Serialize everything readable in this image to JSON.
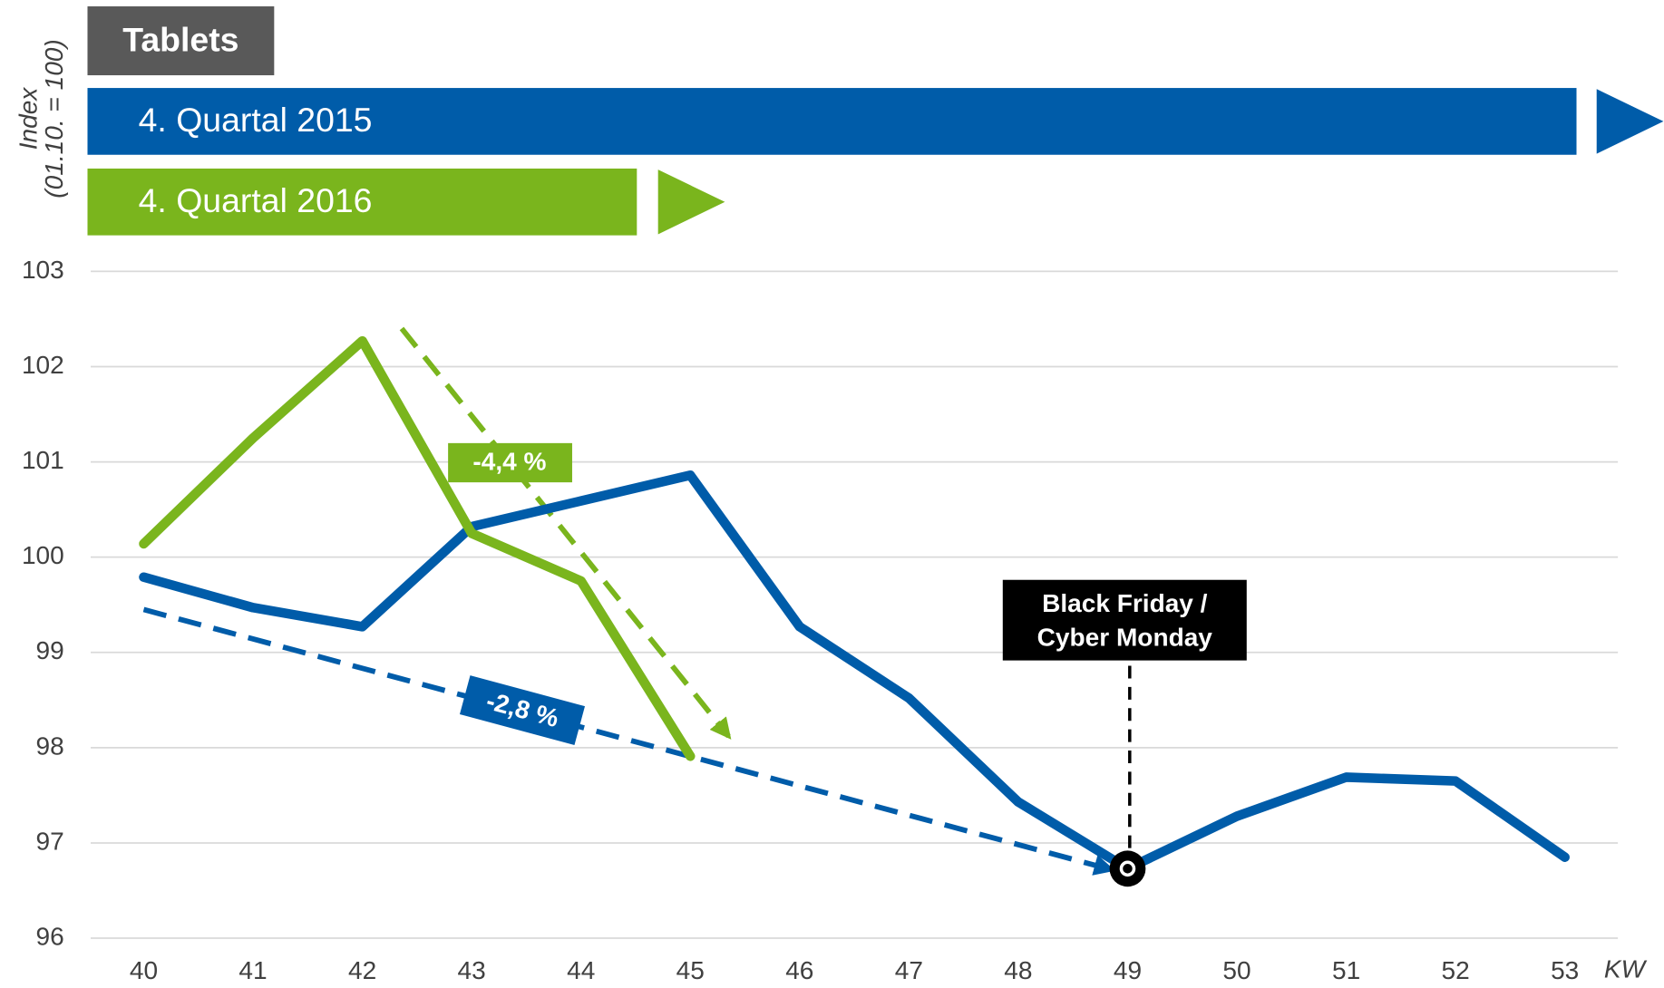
{
  "chart_data": {
    "type": "line",
    "title": "Tablets",
    "y_label_lines": [
      "Index",
      "(01.10. = 100)"
    ],
    "x_label": "KW",
    "categories": [
      "40",
      "41",
      "42",
      "43",
      "44",
      "45",
      "46",
      "47",
      "48",
      "49",
      "50",
      "51",
      "52",
      "53"
    ],
    "series": [
      {
        "name": "4. Quartal 2015",
        "color": "#005ca9",
        "values": [
          99.79,
          99.47,
          99.27,
          100.32,
          100.59,
          100.86,
          99.27,
          98.52,
          97.43,
          96.73,
          97.28,
          97.69,
          97.65,
          96.85
        ]
      },
      {
        "name": "4. Quartal 2016",
        "color": "#7ab51d",
        "values": [
          100.14,
          101.25,
          102.27,
          100.25,
          99.75,
          97.91,
          null,
          null,
          null,
          null,
          null,
          null,
          null,
          null
        ]
      }
    ],
    "ylim": [
      96,
      103
    ],
    "yticks": [
      96,
      97,
      98,
      99,
      100,
      101,
      102,
      103
    ],
    "grid": true,
    "trend_lines": [
      {
        "label": "-2,8 %",
        "color": "#005ca9",
        "x": [
          40,
          48.85
        ],
        "y": [
          99.45,
          96.72
        ]
      },
      {
        "label": "-4,4 %",
        "color": "#7ab51d",
        "x": [
          42.36,
          45.35
        ],
        "y": [
          102.4,
          98.12
        ]
      }
    ],
    "event": {
      "label_lines": [
        "Black Friday /",
        "Cyber Monday"
      ],
      "category_index": 9
    }
  }
}
